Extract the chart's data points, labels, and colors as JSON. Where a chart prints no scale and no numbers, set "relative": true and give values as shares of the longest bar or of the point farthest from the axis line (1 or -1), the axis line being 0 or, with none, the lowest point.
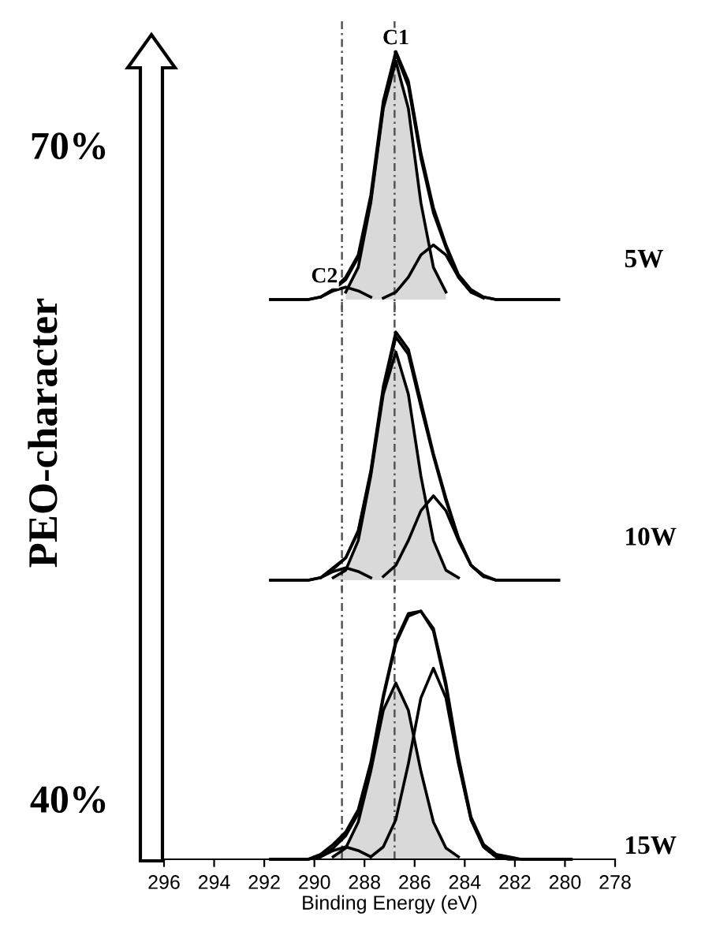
{
  "chart_data": [
    {
      "type": "line",
      "title": "5W",
      "relative": true,
      "xlim": [
        296,
        278
      ],
      "tick_labels": false,
      "annotations": [
        "70%",
        {
          "text": "C1",
          "x": 286.75,
          "y": 1.0
        },
        {
          "text": "C2",
          "x": 289.6,
          "y": 0.04
        }
      ],
      "x": [
        291.75,
        291.25,
        290.75,
        290.25,
        289.75,
        289.25,
        288.75,
        288.25,
        287.75,
        287.25,
        286.75,
        286.25,
        285.75,
        285.25,
        284.75,
        284.25,
        283.75,
        283.25,
        282.75,
        282.25,
        281.75,
        281.25,
        280.75,
        280.25
      ],
      "ref_lines": [
        {
          "axis": "x",
          "value": 288.9,
          "color": "#555555",
          "line_style": "dotted"
        },
        {
          "axis": "x",
          "value": 286.8,
          "color": "#555555",
          "line_style": "dotted"
        }
      ],
      "series": [
        {
          "type": "area",
          "color": "#d9d9d9",
          "x": [
            288.75,
            288.25,
            287.75,
            287.25,
            286.75,
            286.25,
            285.75,
            285.25,
            284.75
          ],
          "values": [
            0.03,
            0.13,
            0.39,
            0.77,
            0.96,
            0.77,
            0.39,
            0.13,
            0.03
          ]
        },
        {
          "type": "line",
          "color": "#000000",
          "x": [
            289.75,
            289.25,
            288.75,
            288.25,
            287.75
          ],
          "values": [
            0.01,
            0.035,
            0.05,
            0.035,
            0.01
          ]
        },
        {
          "type": "line",
          "color": "#000000",
          "x": [
            287.25,
            286.75,
            286.25,
            285.75,
            285.25,
            284.75,
            284.25,
            283.75,
            283.25
          ],
          "values": [
            0.006,
            0.03,
            0.09,
            0.18,
            0.22,
            0.18,
            0.09,
            0.03,
            0.006
          ]
        },
        {
          "type": "line",
          "color": "#000000",
          "values": [
            0,
            0,
            0,
            0,
            0.01,
            0.04,
            0.08,
            0.17,
            0.4,
            0.78,
            0.99,
            0.86,
            0.57,
            0.35,
            0.21,
            0.09,
            0.03,
            0.01,
            0,
            0,
            0,
            0,
            0,
            0
          ]
        },
        {
          "type": "line",
          "color": "#000000",
          "values": [
            0,
            0,
            0,
            0,
            0.01,
            0.04,
            0.09,
            0.18,
            0.42,
            0.8,
            1.0,
            0.88,
            0.59,
            0.37,
            0.22,
            0.1,
            0.04,
            0.01,
            0,
            0,
            0,
            0,
            0,
            0
          ]
        }
      ]
    },
    {
      "type": "line",
      "title": "10W",
      "ylabel": "PEO-character",
      "relative": true,
      "xlim": [
        296,
        278
      ],
      "tick_labels": false,
      "x": [
        291.75,
        291.25,
        290.75,
        290.25,
        289.75,
        289.25,
        288.75,
        288.25,
        287.75,
        287.25,
        286.75,
        286.25,
        285.75,
        285.25,
        284.75,
        284.25,
        283.75,
        283.25,
        282.75,
        282.25,
        281.75,
        281.25,
        280.75,
        280.25
      ],
      "ref_lines": [
        {
          "axis": "x",
          "value": 288.9,
          "color": "#555555",
          "line_style": "dotted"
        },
        {
          "axis": "x",
          "value": 286.8,
          "color": "#555555",
          "line_style": "dotted"
        }
      ],
      "series": [
        {
          "type": "area",
          "color": "#d9d9d9",
          "x": [
            289.25,
            288.75,
            288.25,
            287.75,
            287.25,
            286.75,
            286.25,
            285.75,
            285.25,
            284.75,
            284.25
          ],
          "values": [
            0.01,
            0.04,
            0.16,
            0.42,
            0.75,
            0.92,
            0.75,
            0.42,
            0.16,
            0.04,
            0.01
          ]
        },
        {
          "type": "line",
          "color": "#000000",
          "x": [
            289.75,
            289.25,
            288.75,
            288.25,
            287.75
          ],
          "values": [
            0.01,
            0.035,
            0.05,
            0.035,
            0.01
          ]
        },
        {
          "type": "line",
          "color": "#000000",
          "x": [
            287.25,
            286.75,
            286.25,
            285.75,
            285.25,
            284.75,
            284.25,
            283.75,
            283.25
          ],
          "values": [
            0.015,
            0.06,
            0.16,
            0.28,
            0.34,
            0.28,
            0.16,
            0.06,
            0.015
          ]
        },
        {
          "type": "line",
          "color": "#000000",
          "values": [
            0,
            0,
            0,
            0,
            0.01,
            0.045,
            0.09,
            0.195,
            0.43,
            0.765,
            0.98,
            0.91,
            0.7,
            0.5,
            0.32,
            0.17,
            0.06,
            0.015,
            0,
            0,
            0,
            0,
            0,
            0
          ]
        },
        {
          "type": "line",
          "color": "#000000",
          "values": [
            0,
            0,
            0,
            0,
            0.01,
            0.05,
            0.09,
            0.2,
            0.44,
            0.78,
            1.0,
            0.93,
            0.72,
            0.51,
            0.33,
            0.17,
            0.06,
            0.02,
            0,
            0,
            0,
            0,
            0,
            0
          ]
        }
      ]
    },
    {
      "type": "line",
      "title": "15W",
      "xlabel": "Binding Energy (eV)",
      "relative": true,
      "xlim": [
        296,
        278
      ],
      "xticks": [
        296,
        294,
        292,
        290,
        288,
        286,
        284,
        282,
        280,
        278
      ],
      "tick_labels": "x",
      "annotations": [
        "40%"
      ],
      "x": [
        291.75,
        291.25,
        290.75,
        290.25,
        289.75,
        289.25,
        288.75,
        288.25,
        287.75,
        287.25,
        286.75,
        286.25,
        285.75,
        285.25,
        284.75,
        284.25,
        283.75,
        283.25,
        282.75,
        282.25,
        281.75,
        281.25,
        280.75,
        280.25,
        279.75
      ],
      "ref_lines": [
        {
          "axis": "x",
          "value": 288.9,
          "color": "#555555",
          "line_style": "dotted"
        },
        {
          "axis": "x",
          "value": 286.8,
          "color": "#555555",
          "line_style": "dotted"
        }
      ],
      "series": [
        {
          "type": "area",
          "color": "#d9d9d9",
          "x": [
            289.25,
            288.75,
            288.25,
            287.75,
            287.25,
            286.75,
            286.25,
            285.75,
            285.25,
            284.75,
            284.25
          ],
          "values": [
            0.01,
            0.045,
            0.15,
            0.355,
            0.6,
            0.71,
            0.6,
            0.355,
            0.15,
            0.045,
            0.01
          ]
        },
        {
          "type": "line",
          "color": "#000000",
          "x": [
            289.75,
            289.25,
            288.75,
            288.25,
            287.75
          ],
          "values": [
            0.01,
            0.035,
            0.05,
            0.035,
            0.01
          ]
        },
        {
          "type": "line",
          "color": "#000000",
          "x": [
            287.75,
            287.25,
            286.75,
            286.25,
            285.75,
            285.25,
            284.75,
            284.25,
            283.75,
            283.25,
            282.75
          ],
          "values": [
            0.01,
            0.05,
            0.16,
            0.385,
            0.65,
            0.77,
            0.65,
            0.385,
            0.16,
            0.05,
            0.01
          ]
        },
        {
          "type": "line",
          "color": "#000000",
          "values": [
            0,
            0,
            0,
            0,
            0.01,
            0.045,
            0.095,
            0.185,
            0.375,
            0.65,
            0.87,
            0.98,
            1.0,
            0.92,
            0.695,
            0.395,
            0.16,
            0.05,
            0.01,
            0,
            0,
            0,
            0,
            0,
            0
          ]
        },
        {
          "type": "line",
          "color": "#000000",
          "values": [
            0,
            0,
            0,
            0,
            0.02,
            0.06,
            0.11,
            0.2,
            0.39,
            0.66,
            0.88,
            0.99,
            1.0,
            0.93,
            0.71,
            0.41,
            0.17,
            0.06,
            0.02,
            0.01,
            0,
            0,
            0,
            0,
            0
          ]
        }
      ]
    }
  ]
}
